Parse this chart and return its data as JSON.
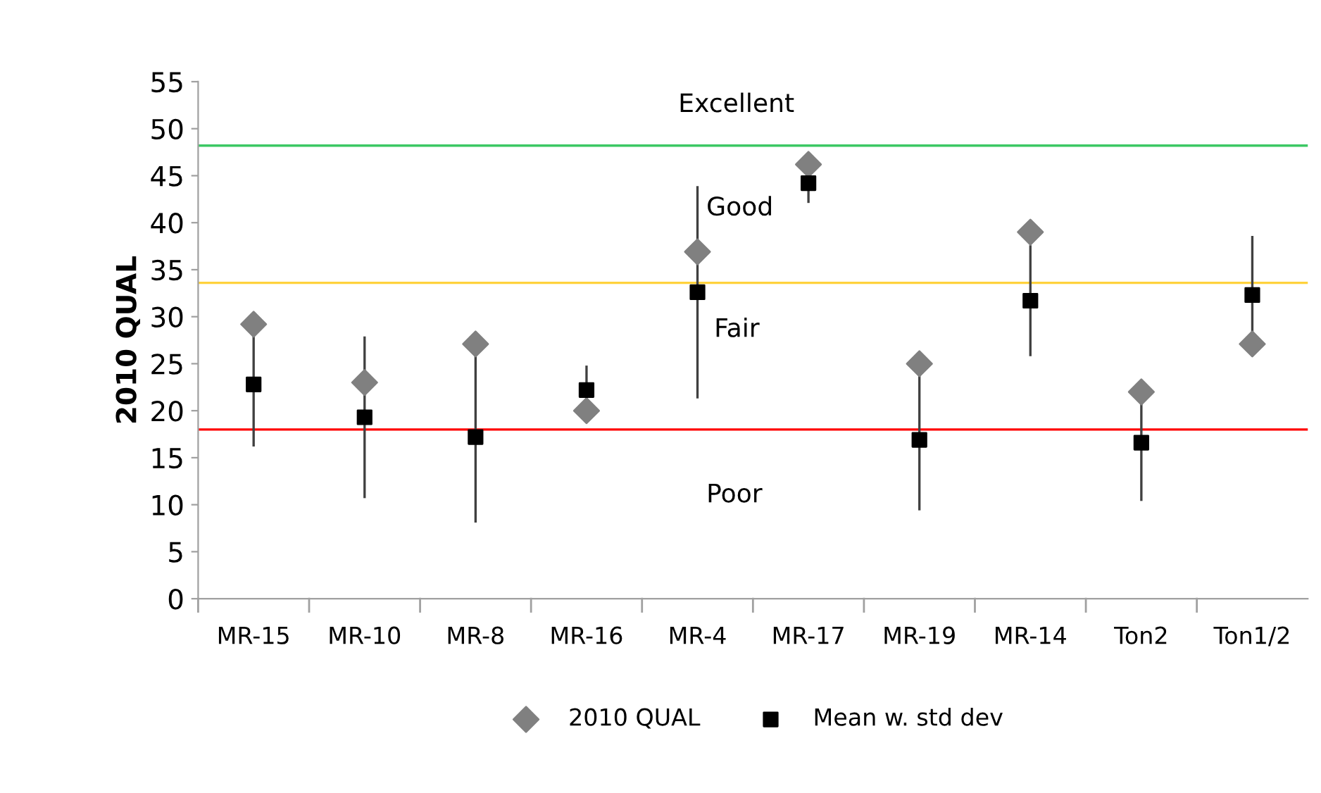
{
  "chart_data": {
    "type": "scatter",
    "ylabel": "2010 QUAL",
    "categories": [
      "MR-15",
      "MR-10",
      "MR-8",
      "MR-16",
      "MR-4",
      "MR-17",
      "MR-19",
      "MR-14",
      "Ton2",
      "Ton1/2"
    ],
    "series": [
      {
        "name": "2010 QUAL",
        "color": "#808080",
        "marker": "diamond",
        "values": [
          29.2,
          23,
          27.1,
          20,
          36.9,
          46.2,
          25,
          39,
          22,
          27.1
        ]
      },
      {
        "name": "Mean w. std dev",
        "color": "#000000",
        "marker": "square",
        "values": [
          22.8,
          19.3,
          17.2,
          22.2,
          32.6,
          44.2,
          16.9,
          31.7,
          16.6,
          32.3
        ],
        "errors": [
          6.6,
          8.6,
          9.1,
          2.6,
          11.3,
          2.1,
          7.5,
          5.9,
          6.2,
          6.3
        ]
      }
    ],
    "ylim": [
      0,
      55
    ],
    "yticks": [
      0,
      5,
      10,
      15,
      20,
      25,
      30,
      35,
      40,
      45,
      50,
      55
    ],
    "ref_lines": [
      {
        "axis": "y",
        "value": 48.2,
        "color": "#3cc864"
      },
      {
        "axis": "y",
        "value": 33.6,
        "color": "#ffd23c"
      },
      {
        "axis": "y",
        "value": 18,
        "color": "#ff0000"
      }
    ],
    "annotations": [
      "Excellent",
      "Good",
      "Fair",
      "Poor"
    ],
    "grid": false,
    "legend": "bottom"
  }
}
